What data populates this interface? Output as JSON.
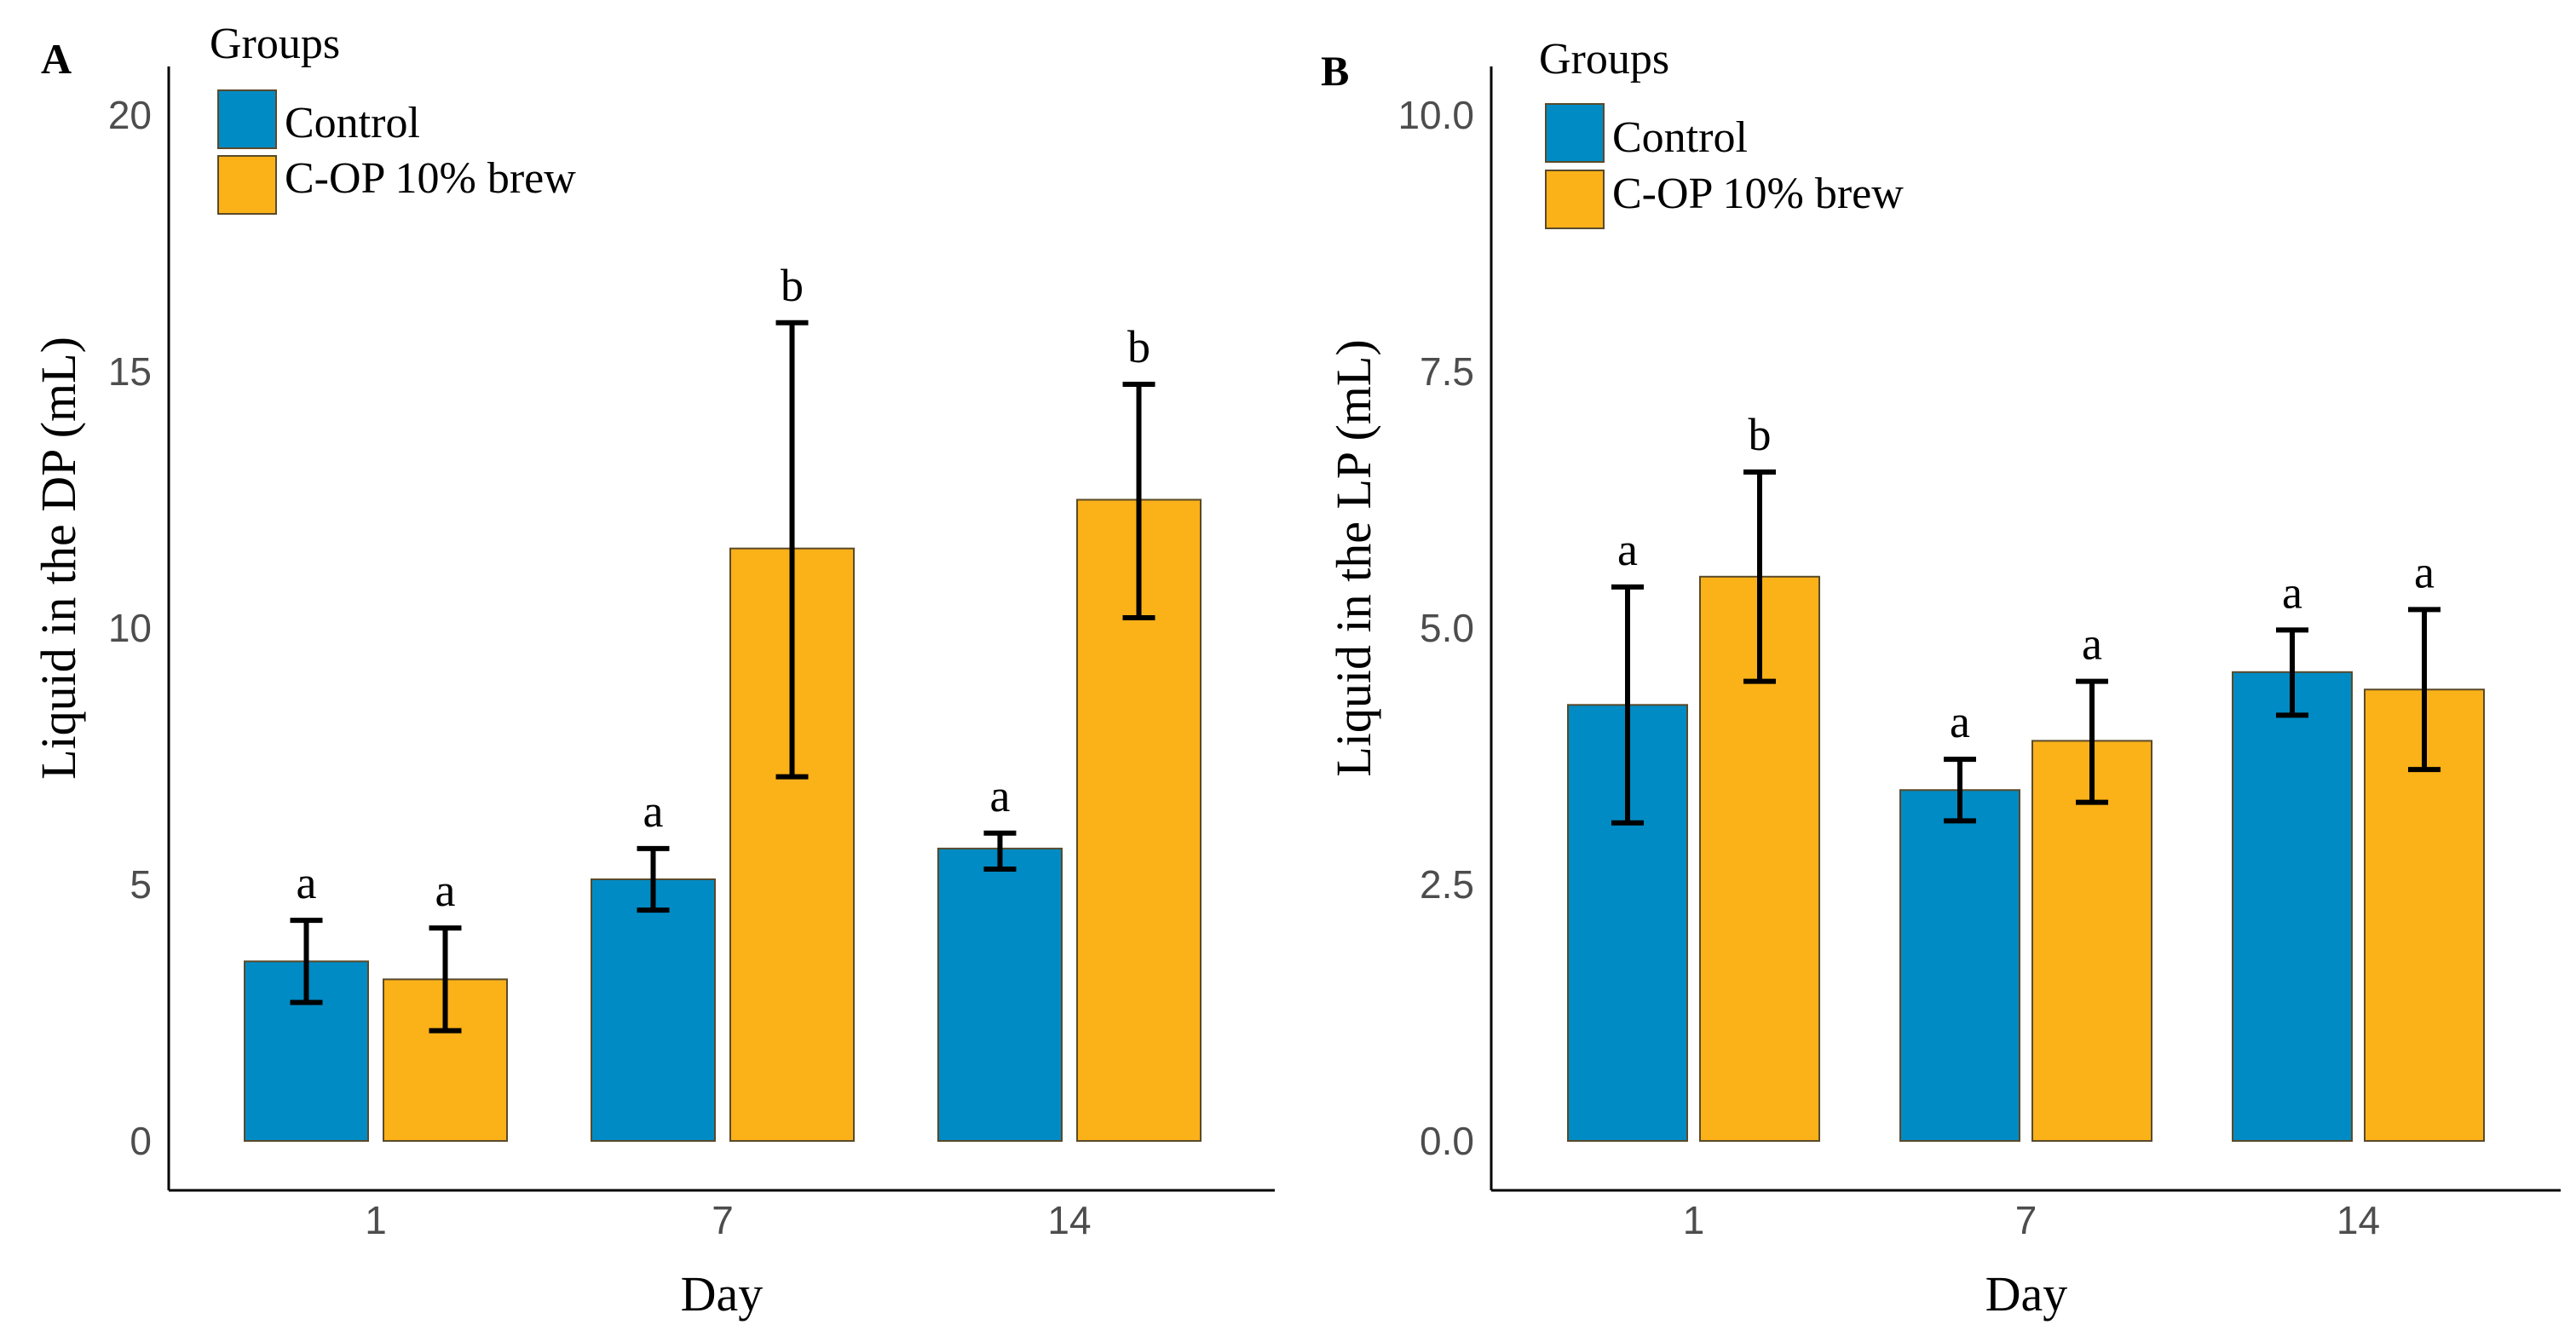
{
  "legend_title": "Groups",
  "colors": {
    "control": "#008bc4",
    "treatment": "#fbb118",
    "edge": "#5a4a2a",
    "axis": "#000000"
  },
  "chart_data": [
    {
      "panel_label": "A",
      "type": "bar",
      "xlabel": "Day",
      "ylabel": "Liquid in the DP (mL)",
      "categories": [
        "1",
        "7",
        "14"
      ],
      "ylim": [
        0,
        20
      ],
      "yticks": [
        0,
        5,
        10,
        15,
        20
      ],
      "ytick_labels": [
        "0",
        "5",
        "10",
        "15",
        "20"
      ],
      "series": [
        {
          "name": "Control",
          "values": [
            3.5,
            5.1,
            5.7
          ],
          "err_low": [
            2.7,
            4.5,
            5.3
          ],
          "err_high": [
            4.3,
            5.7,
            6.0
          ],
          "letters": [
            "a",
            "a",
            "a"
          ]
        },
        {
          "name": "C-OP 10% brew",
          "values": [
            3.15,
            11.55,
            12.5
          ],
          "err_low": [
            2.15,
            7.1,
            10.2
          ],
          "err_high": [
            4.15,
            15.95,
            14.75
          ],
          "letters": [
            "a",
            "b",
            "b"
          ]
        }
      ]
    },
    {
      "panel_label": "B",
      "type": "bar",
      "xlabel": "Day",
      "ylabel": "Liquid in the LP (mL)",
      "categories": [
        "1",
        "7",
        "14"
      ],
      "ylim": [
        0,
        10
      ],
      "yticks": [
        0,
        2.5,
        5,
        7.5,
        10
      ],
      "ytick_labels": [
        "0.0",
        "2.5",
        "5.0",
        "7.5",
        "10.0"
      ],
      "series": [
        {
          "name": "Control",
          "values": [
            4.25,
            3.42,
            4.57
          ],
          "err_low": [
            3.1,
            3.12,
            4.15
          ],
          "err_high": [
            5.4,
            3.72,
            4.98
          ],
          "letters": [
            "a",
            "a",
            "a"
          ]
        },
        {
          "name": "C-OP 10% brew",
          "values": [
            5.5,
            3.9,
            4.4
          ],
          "err_low": [
            4.48,
            3.3,
            3.62
          ],
          "err_high": [
            6.52,
            4.48,
            5.18
          ],
          "letters": [
            "b",
            "a",
            "a"
          ]
        }
      ]
    }
  ]
}
